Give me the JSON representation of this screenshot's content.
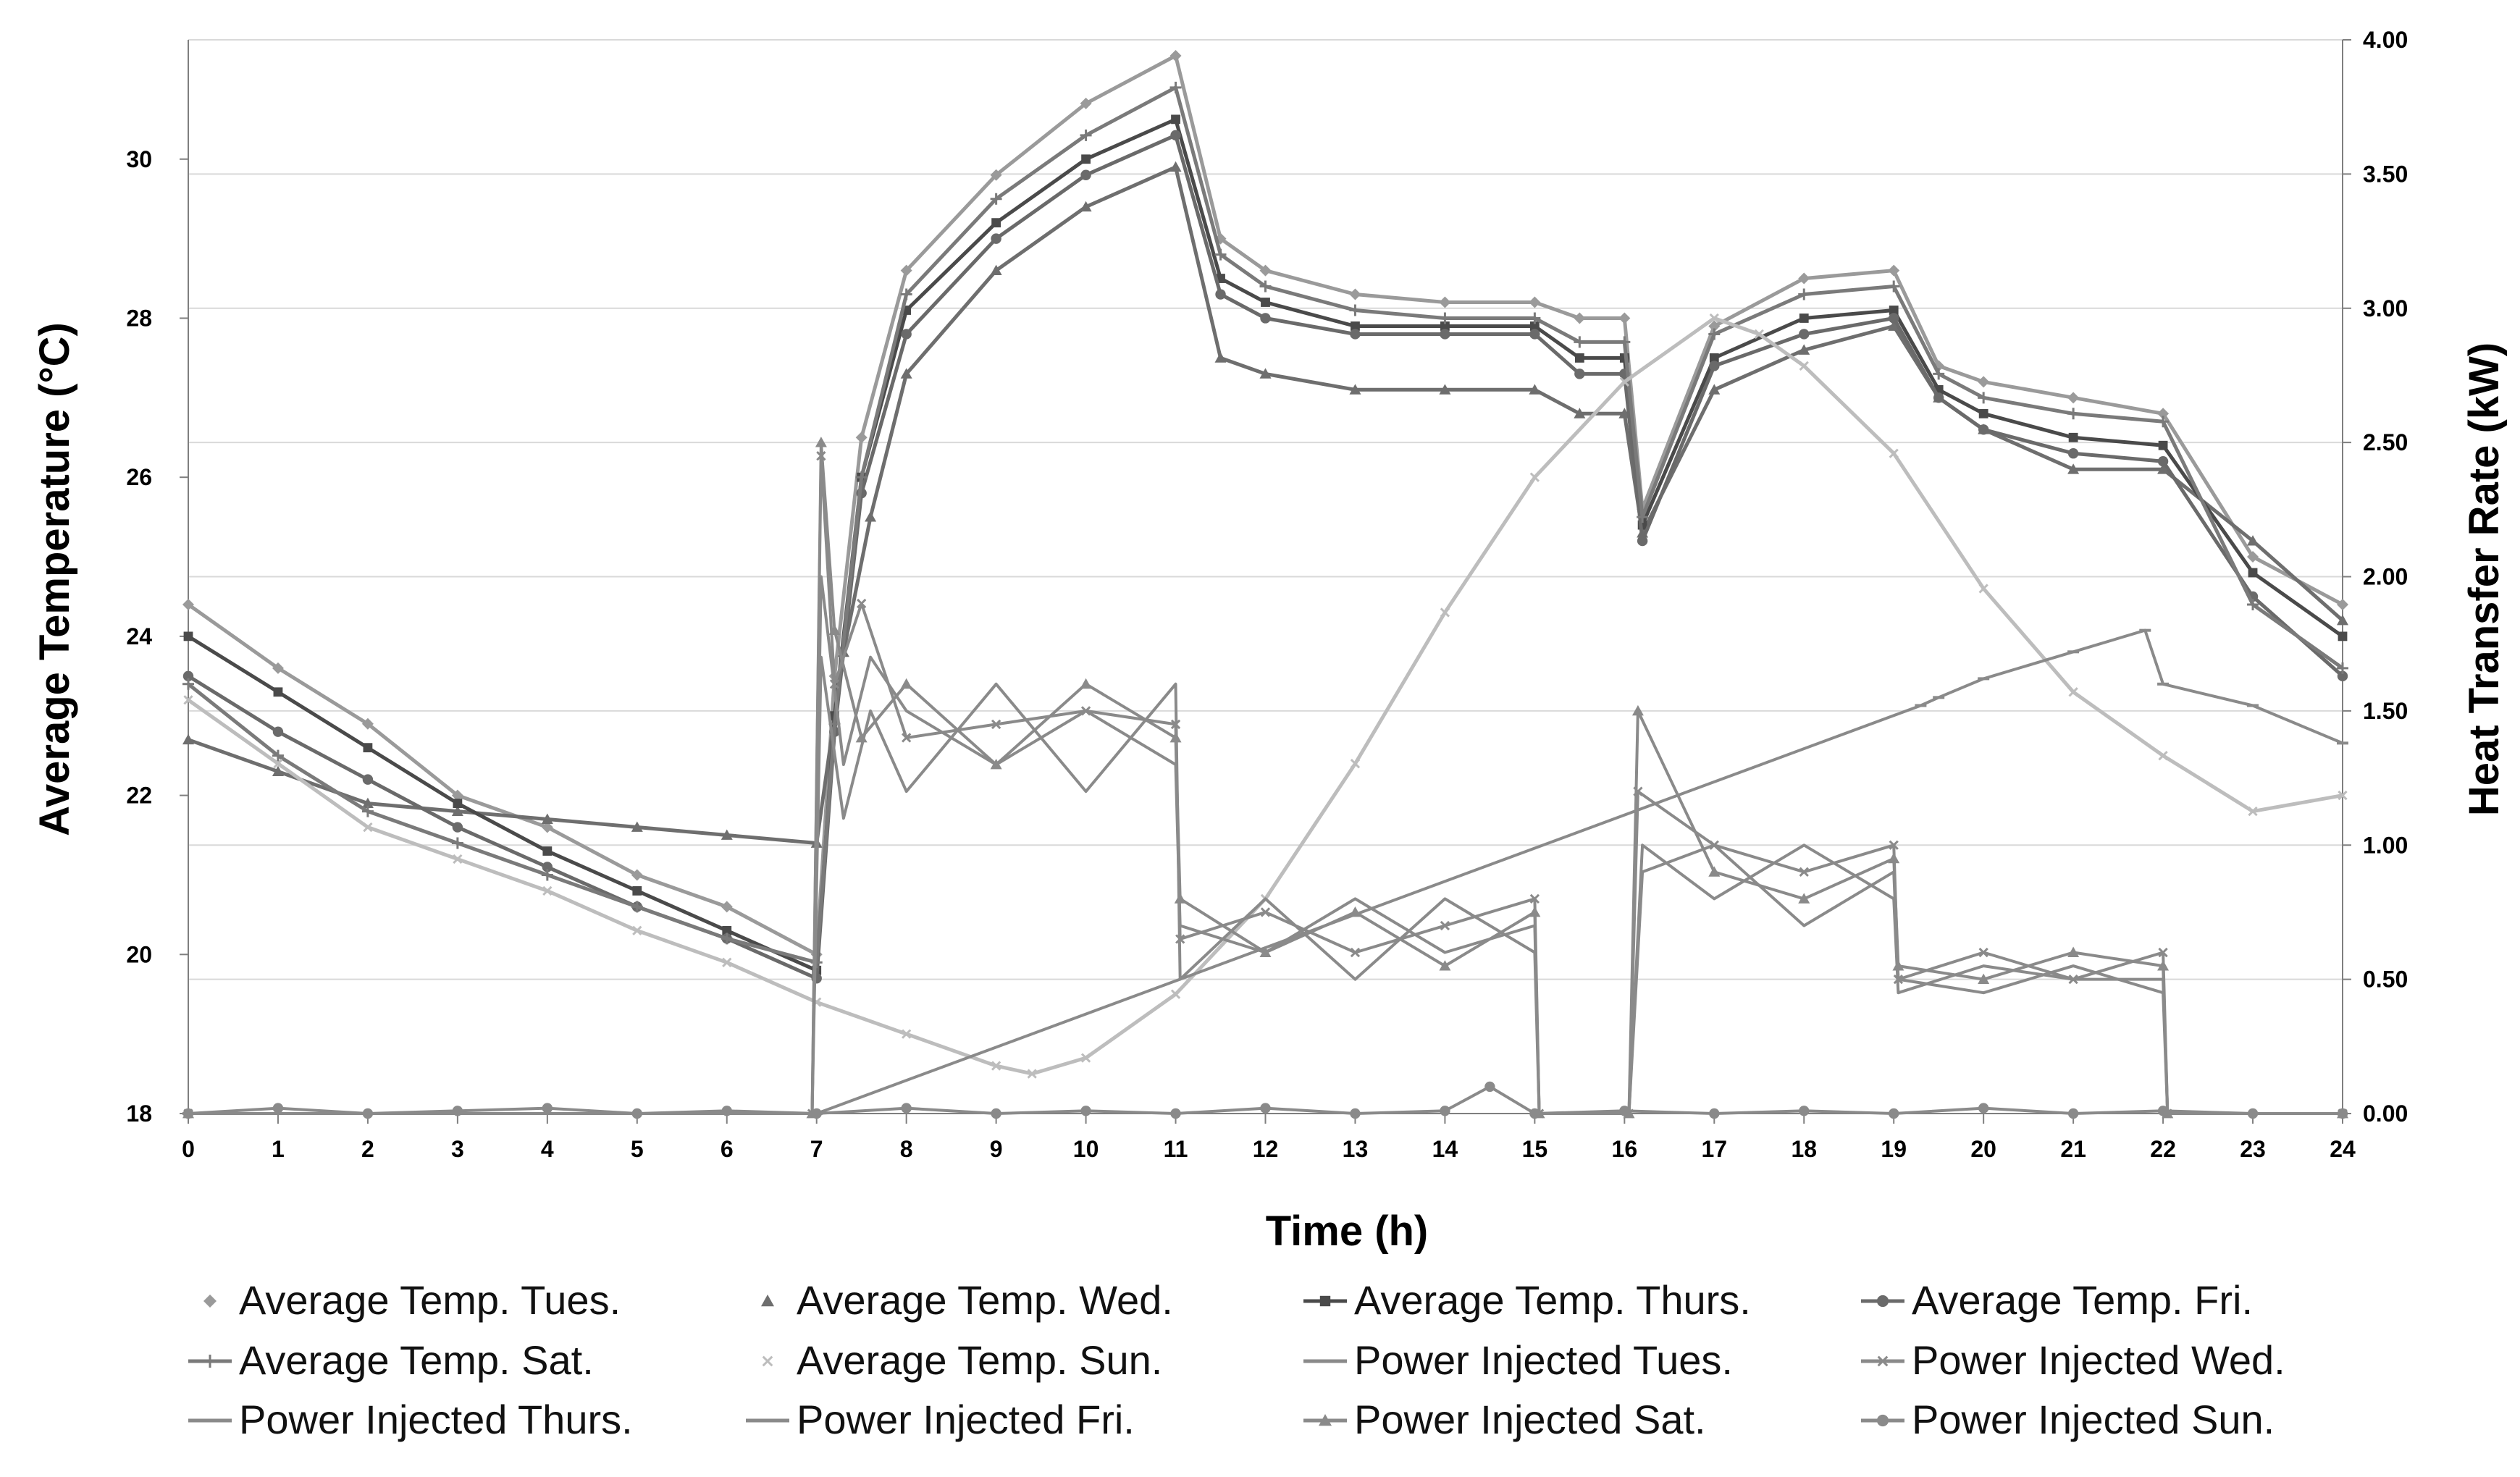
{
  "chart_data": {
    "type": "line",
    "title": "",
    "xlabel": "Time (h)",
    "ylabel": "Average Temperature (°C)",
    "ylabel_right": "Heat Transfer Rate (kW)",
    "xlim": [
      0,
      24
    ],
    "ylim": [
      18,
      31.5
    ],
    "ylim_right": [
      0,
      4
    ],
    "grid": true,
    "legend_position": "bottom",
    "x_ticks": [
      "0",
      "1",
      "2",
      "3",
      "4",
      "5",
      "6",
      "7",
      "8",
      "9",
      "10",
      "11",
      "12",
      "13",
      "14",
      "15",
      "16",
      "17",
      "18",
      "19",
      "20",
      "21",
      "22",
      "23",
      "24"
    ],
    "y_ticks": [
      "18",
      "20",
      "22",
      "24",
      "26",
      "28",
      "30"
    ],
    "y_ticks_right": [
      "0.00",
      "0.50",
      "1.00",
      "1.50",
      "2.00",
      "2.50",
      "3.00",
      "3.50",
      "4.00"
    ],
    "colors": {
      "grid": "#d9d9d9",
      "axis": "#7f7f7f",
      "tues": "#9a9a9a",
      "wed": "#6e6e6e",
      "thurs": "#4a4a4a",
      "fri": "#6a6a6a",
      "sat": "#7a7a7a",
      "sun": "#bdbdbd",
      "power": "#8a8a8a"
    },
    "series": [
      {
        "name": "Average Temp. Tues.",
        "axis": "left",
        "marker": "diamond",
        "color_key": "tues",
        "x": [
          0,
          1,
          2,
          3,
          4,
          5,
          6,
          7,
          7.2,
          7.5,
          8,
          9,
          10,
          11,
          11.5,
          12,
          13,
          14,
          15,
          15.5,
          16,
          16.2,
          17,
          18,
          19,
          19.5,
          20,
          21,
          22,
          23,
          24
        ],
        "y": [
          24.4,
          23.6,
          22.9,
          22.0,
          21.6,
          21.0,
          20.6,
          20.0,
          23.5,
          26.5,
          28.6,
          29.8,
          30.7,
          31.3,
          29.0,
          28.6,
          28.3,
          28.2,
          28.2,
          28.0,
          28.0,
          25.6,
          27.9,
          28.5,
          28.6,
          27.4,
          27.2,
          27.0,
          26.8,
          25.0,
          24.4
        ]
      },
      {
        "name": "Average Temp. Wed.",
        "axis": "left",
        "marker": "triangle",
        "color_key": "wed",
        "x": [
          0,
          1,
          2,
          3,
          4,
          5,
          6,
          7,
          7.3,
          7.6,
          8,
          9,
          10,
          11,
          11.5,
          12,
          13,
          14,
          15,
          15.5,
          16,
          16.2,
          17,
          18,
          19,
          19.5,
          20,
          21,
          22,
          23,
          24
        ],
        "y": [
          22.7,
          22.3,
          21.9,
          21.8,
          21.7,
          21.6,
          21.5,
          21.4,
          23.8,
          25.5,
          27.3,
          28.6,
          29.4,
          29.9,
          27.5,
          27.3,
          27.1,
          27.1,
          27.1,
          26.8,
          26.8,
          25.3,
          27.1,
          27.6,
          27.9,
          27.0,
          26.6,
          26.1,
          26.1,
          25.2,
          24.2
        ]
      },
      {
        "name": "Average Temp. Thurs.",
        "axis": "left",
        "marker": "square",
        "color_key": "thurs",
        "x": [
          0,
          1,
          2,
          3,
          4,
          5,
          6,
          7,
          7.2,
          7.5,
          8,
          9,
          10,
          11,
          11.5,
          12,
          13,
          14,
          15,
          15.5,
          16,
          16.2,
          17,
          18,
          19,
          19.5,
          20,
          21,
          22,
          23,
          24
        ],
        "y": [
          24.0,
          23.3,
          22.6,
          21.9,
          21.3,
          20.8,
          20.3,
          19.8,
          23.0,
          26.0,
          28.1,
          29.2,
          30.0,
          30.5,
          28.5,
          28.2,
          27.9,
          27.9,
          27.9,
          27.5,
          27.5,
          25.4,
          27.5,
          28.0,
          28.1,
          27.1,
          26.8,
          26.5,
          26.4,
          24.8,
          24.0
        ]
      },
      {
        "name": "Average Temp. Fri.",
        "axis": "left",
        "marker": "circle",
        "color_key": "fri",
        "x": [
          0,
          1,
          2,
          3,
          4,
          5,
          6,
          7,
          7.2,
          7.5,
          8,
          9,
          10,
          11,
          11.5,
          12,
          13,
          14,
          15,
          15.5,
          16,
          16.2,
          17,
          18,
          19,
          19.5,
          20,
          21,
          22,
          23,
          24
        ],
        "y": [
          23.5,
          22.8,
          22.2,
          21.6,
          21.1,
          20.6,
          20.2,
          19.7,
          22.8,
          25.8,
          27.8,
          29.0,
          29.8,
          30.3,
          28.3,
          28.0,
          27.8,
          27.8,
          27.8,
          27.3,
          27.3,
          25.2,
          27.4,
          27.8,
          28.0,
          27.0,
          26.6,
          26.3,
          26.2,
          24.5,
          23.5
        ]
      },
      {
        "name": "Average Temp. Sat.",
        "axis": "left",
        "marker": "plus",
        "color_key": "sat",
        "x": [
          0,
          1,
          2,
          3,
          4,
          5,
          6,
          7,
          7.2,
          7.5,
          8,
          9,
          10,
          11,
          11.5,
          12,
          13,
          14,
          15,
          15.5,
          16,
          16.2,
          17,
          18,
          19,
          19.5,
          20,
          21,
          22,
          23,
          24
        ],
        "y": [
          23.4,
          22.5,
          21.8,
          21.4,
          21.0,
          20.6,
          20.2,
          19.9,
          22.9,
          26.0,
          28.3,
          29.5,
          30.3,
          30.9,
          28.8,
          28.4,
          28.1,
          28.0,
          28.0,
          27.7,
          27.7,
          25.5,
          27.8,
          28.3,
          28.4,
          27.3,
          27.0,
          26.8,
          26.7,
          24.4,
          23.6
        ]
      },
      {
        "name": "Average Temp. Sun.",
        "axis": "left",
        "marker": "x",
        "color_key": "sun",
        "x": [
          0,
          1,
          2,
          3,
          4,
          5,
          6,
          7,
          8,
          9,
          9.4,
          10,
          11,
          12,
          13,
          14,
          15,
          16,
          17,
          17.5,
          18,
          19,
          20,
          21,
          22,
          23,
          24
        ],
        "y": [
          23.2,
          22.4,
          21.6,
          21.2,
          20.8,
          20.3,
          19.9,
          19.4,
          19.0,
          18.6,
          18.5,
          18.7,
          19.5,
          20.7,
          22.4,
          24.3,
          26.0,
          27.2,
          28.0,
          27.8,
          27.4,
          26.3,
          24.6,
          23.3,
          22.5,
          21.8,
          22.0
        ]
      },
      {
        "name": "Power Injected Tues.",
        "axis": "right",
        "marker": "dash",
        "color_key": "power",
        "x": [
          0,
          7,
          19.3,
          19.5,
          20,
          21,
          21.8,
          22,
          23,
          24
        ],
        "y": [
          0,
          0,
          1.52,
          1.55,
          1.62,
          1.72,
          1.8,
          1.6,
          1.52,
          1.38
        ]
      },
      {
        "name": "Power Injected Wed.",
        "axis": "right",
        "marker": "x",
        "color_key": "power",
        "x": [
          0,
          6.95,
          7.05,
          7.2,
          7.5,
          8,
          9,
          10,
          11,
          11.05,
          12,
          13,
          14,
          15,
          15.05,
          16.05,
          16.15,
          17,
          18,
          19,
          19.05,
          20,
          21,
          22,
          22.05,
          24
        ],
        "y": [
          0,
          0,
          2.45,
          1.6,
          1.9,
          1.4,
          1.45,
          1.5,
          1.45,
          0.65,
          0.75,
          0.6,
          0.7,
          0.8,
          0,
          0,
          1.2,
          1.0,
          0.9,
          1.0,
          0.5,
          0.6,
          0.5,
          0.6,
          0,
          0
        ]
      },
      {
        "name": "Power Injected Thurs.",
        "axis": "right",
        "marker": "line",
        "color_key": "power",
        "x": [
          0,
          6.95,
          7.05,
          7.3,
          7.6,
          8,
          9,
          10,
          11,
          11.05,
          12,
          13,
          14,
          15,
          15.05,
          16.05,
          16.2,
          17,
          18,
          19,
          19.05,
          20,
          21,
          22,
          22.05,
          24
        ],
        "y": [
          0,
          0,
          2.0,
          1.3,
          1.7,
          1.5,
          1.3,
          1.5,
          1.3,
          0.7,
          0.6,
          0.8,
          0.6,
          0.7,
          0,
          0,
          1.0,
          0.8,
          1.0,
          0.8,
          0.45,
          0.55,
          0.5,
          0.5,
          0,
          0
        ]
      },
      {
        "name": "Power Injected Fri.",
        "axis": "right",
        "marker": "line",
        "color_key": "power",
        "x": [
          0,
          6.95,
          7.05,
          7.3,
          7.6,
          8,
          9,
          10,
          11,
          11.05,
          12,
          13,
          14,
          15,
          15.05,
          16.05,
          16.2,
          17,
          18,
          19,
          19.05,
          20,
          21,
          22,
          22.05,
          24
        ],
        "y": [
          0,
          0,
          1.7,
          1.1,
          1.5,
          1.2,
          1.6,
          1.2,
          1.6,
          0.5,
          0.8,
          0.5,
          0.8,
          0.6,
          0,
          0,
          0.9,
          1.0,
          0.7,
          0.9,
          0.5,
          0.45,
          0.55,
          0.45,
          0,
          0
        ]
      },
      {
        "name": "Power Injected Sat.",
        "axis": "right",
        "marker": "triangle",
        "color_key": "power",
        "x": [
          0,
          6.95,
          7.05,
          7.2,
          7.5,
          8,
          9,
          10,
          11,
          11.05,
          12,
          13,
          14,
          15,
          15.05,
          16.05,
          16.15,
          17,
          18,
          19,
          19.05,
          20,
          21,
          22,
          22.05,
          24
        ],
        "y": [
          0,
          0,
          2.5,
          1.8,
          1.4,
          1.6,
          1.3,
          1.6,
          1.4,
          0.8,
          0.6,
          0.75,
          0.55,
          0.75,
          0,
          0,
          1.5,
          0.9,
          0.8,
          0.95,
          0.55,
          0.5,
          0.6,
          0.55,
          0,
          0
        ]
      },
      {
        "name": "Power Injected Sun.",
        "axis": "right",
        "marker": "circle",
        "color_key": "power",
        "x": [
          0,
          1,
          2,
          3,
          4,
          5,
          6,
          7,
          8,
          9,
          10,
          11,
          12,
          13,
          14,
          14.5,
          15,
          16,
          17,
          18,
          19,
          20,
          21,
          22,
          23,
          24
        ],
        "y": [
          0,
          0.02,
          0,
          0.01,
          0.02,
          0,
          0.01,
          0,
          0.02,
          0,
          0.01,
          0,
          0.02,
          0,
          0.01,
          0.1,
          0,
          0.01,
          0,
          0.01,
          0,
          0.02,
          0,
          0.01,
          0,
          0
        ]
      }
    ]
  }
}
